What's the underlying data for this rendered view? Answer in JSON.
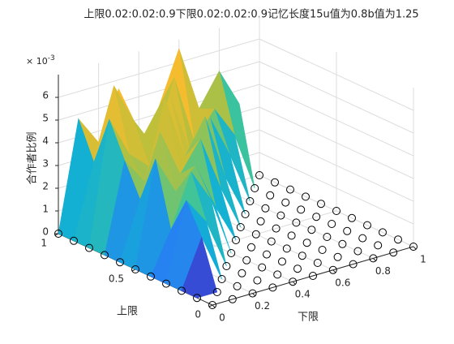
{
  "chart_data": {
    "type": "surface3d",
    "title": "上限0.02:0.02:0.9下限0.02:0.02:0.9记忆长度15u值为0.8b值为1.25",
    "xlabel": "下限",
    "ylabel": "上限",
    "zlabel": "合作者比例",
    "z_exponent_base": "× 10",
    "z_exponent_power": "-3",
    "x": [
      0,
      0.1,
      0.2,
      0.3,
      0.4,
      0.5,
      0.6,
      0.7,
      0.8,
      0.9,
      1
    ],
    "y": [
      0,
      0.1,
      0.2,
      0.3,
      0.4,
      0.5,
      0.6,
      0.7,
      0.8,
      0.9,
      1
    ],
    "z": [
      [
        0,
        0,
        0,
        0,
        0,
        0,
        0,
        0,
        0,
        0,
        0
      ],
      [
        0,
        0,
        0,
        0,
        0,
        0,
        0,
        0,
        0,
        0,
        0
      ],
      [
        0,
        2.1,
        0,
        0,
        0,
        0,
        0,
        0,
        0,
        0,
        0
      ],
      [
        0,
        3.4,
        2.2,
        0,
        0,
        0,
        0,
        0,
        0,
        0,
        0
      ],
      [
        0,
        1.8,
        4.1,
        2.6,
        0,
        0,
        0,
        0,
        0,
        0,
        0
      ],
      [
        0,
        4.6,
        2.9,
        3.8,
        1.7,
        0,
        0,
        0,
        0,
        0,
        0
      ],
      [
        0,
        2.5,
        5.2,
        3.1,
        4.4,
        2.0,
        0,
        0,
        0,
        0,
        0
      ],
      [
        0,
        3.9,
        2.7,
        6.1,
        3.3,
        4.8,
        1.9,
        0,
        0,
        0,
        0
      ],
      [
        0,
        5.4,
        3.6,
        2.8,
        5.7,
        3.0,
        4.2,
        2.3,
        0,
        0,
        0
      ],
      [
        0,
        3.2,
        6.3,
        4.5,
        3.1,
        5.9,
        2.8,
        4.0,
        2.6,
        0,
        0
      ],
      [
        0,
        4.8,
        3.5,
        5.6,
        2.9,
        4.3,
        6.6,
        3.7,
        5.1,
        3.4,
        0
      ]
    ],
    "xlim": [
      0,
      1
    ],
    "ylim": [
      0,
      1
    ],
    "zlim": [
      0,
      7
    ],
    "xticks": [
      0,
      0.2,
      0.4,
      0.6,
      0.8,
      1
    ],
    "yticks": [
      0,
      0.5,
      1
    ],
    "zticks": [
      0,
      1,
      2,
      3,
      4,
      5,
      6
    ],
    "colormap": [
      "#3e26a8",
      "#2f6efd",
      "#13b0d4",
      "#47c78f",
      "#bcbf3a",
      "#fcbc2e",
      "#f9fb15"
    ],
    "marker_color": "#000000",
    "grid": true
  }
}
